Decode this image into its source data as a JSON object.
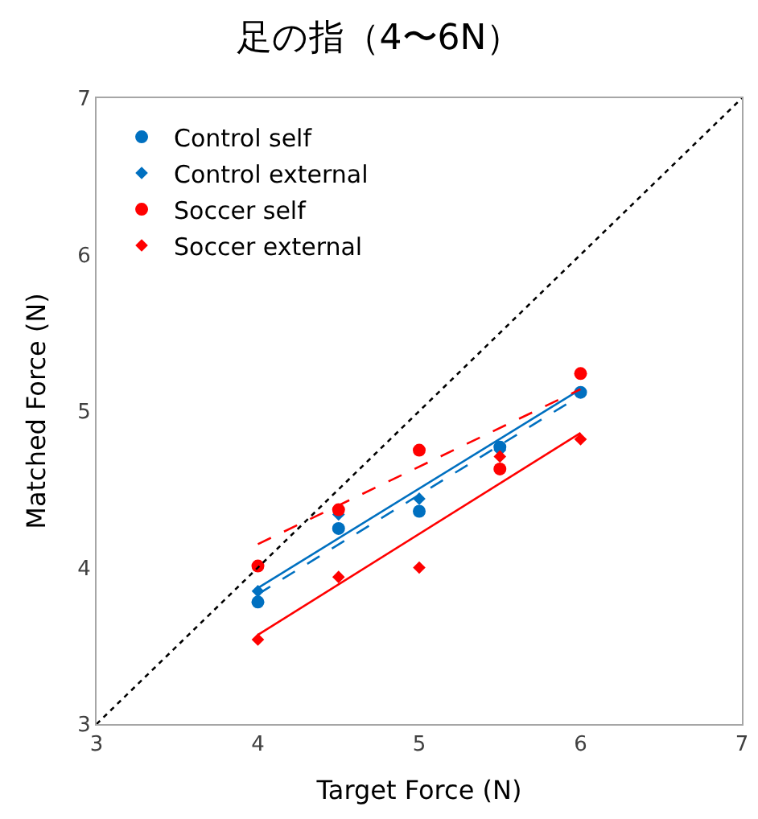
{
  "chart_data": {
    "type": "scatter",
    "title": "足の指（4〜6N）",
    "xlabel": "Target Force (N)",
    "ylabel": "Matched Force (N)",
    "xlim": [
      3,
      7
    ],
    "ylim": [
      3,
      7
    ],
    "xticks": [
      3,
      4,
      5,
      6,
      7
    ],
    "yticks": [
      3,
      4,
      5,
      6,
      7
    ],
    "legend": "top left",
    "series": [
      {
        "name": "Control self",
        "color": "#0070c0",
        "marker": "circle",
        "x": [
          4,
          4.5,
          5,
          5.5,
          6
        ],
        "values": [
          3.78,
          4.25,
          4.36,
          4.77,
          5.12
        ]
      },
      {
        "name": "Control external",
        "color": "#0070c0",
        "marker": "diamond",
        "x": [
          4,
          4.5,
          5,
          5.5
        ],
        "values": [
          3.85,
          4.34,
          4.44,
          4.75
        ]
      },
      {
        "name": "Soccer self",
        "color": "#ff0000",
        "marker": "circle",
        "x": [
          4,
          4.5,
          5,
          5.5,
          6
        ],
        "values": [
          4.01,
          4.37,
          4.75,
          4.63,
          5.24
        ]
      },
      {
        "name": "Soccer external",
        "color": "#ff0000",
        "marker": "diamond",
        "x": [
          4,
          4.5,
          5,
          5.5,
          6
        ],
        "values": [
          3.54,
          3.94,
          4.0,
          4.71,
          4.82
        ]
      },
      {
        "type": "line",
        "color": "#0070c0",
        "line_style": "solid",
        "x": [
          4,
          6
        ],
        "values": [
          3.87,
          5.14
        ]
      },
      {
        "type": "line",
        "color": "#0070c0",
        "line_style": "dashed",
        "x": [
          4,
          6
        ],
        "values": [
          3.83,
          5.1
        ]
      },
      {
        "type": "line",
        "color": "#ff0000",
        "line_style": "dashed",
        "x": [
          4,
          6
        ],
        "values": [
          4.15,
          5.14
        ]
      },
      {
        "type": "line",
        "color": "#ff0000",
        "line_style": "solid",
        "x": [
          4,
          6
        ],
        "values": [
          3.57,
          4.86
        ]
      },
      {
        "type": "line",
        "color": "#000000",
        "line_style": "dotted",
        "x": [
          3,
          7
        ],
        "values": [
          3,
          7
        ]
      }
    ]
  }
}
